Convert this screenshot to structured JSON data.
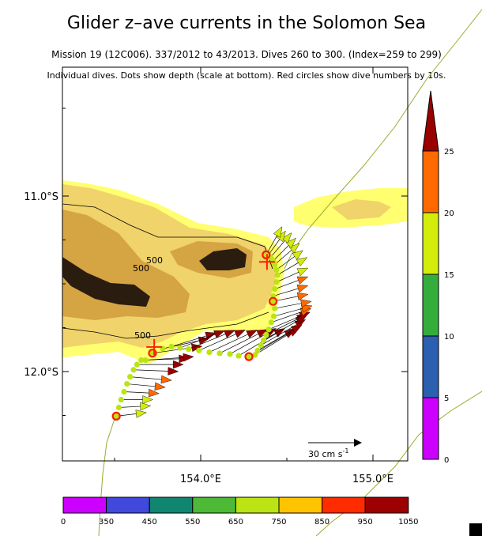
{
  "chart_data": {
    "type": "scatter",
    "title": "Glider z–ave currents in the Solomon Sea",
    "subtitle": "Mission 19 (12C006). 337/2012 to 43/2013. Dives 260 to 300. (Index=259 to 299)",
    "caption": "Individual dives. Dots show depth (scale at bottom). Red circles show dive numbers by 10s.",
    "x_ticks": [
      {
        "value": 154.0,
        "label": "154.0°E"
      },
      {
        "value": 155.0,
        "label": "155.0°E"
      }
    ],
    "y_ticks": [
      {
        "value": -11.0,
        "label": "11.0°S"
      },
      {
        "value": -12.0,
        "label": "12.0°S"
      }
    ],
    "xlim": [
      153.2,
      155.2
    ],
    "ylim": [
      -12.5,
      -10.25
    ],
    "contour_label": "500",
    "scale_arrow": {
      "value": 30,
      "label": "30 cm s",
      "sup": "-1"
    },
    "speed_colorbar": {
      "ticks": [
        "0",
        "5",
        "10",
        "15",
        "20",
        "25"
      ],
      "colors": [
        "#cc00ff",
        "#2b5fb0",
        "#35ad3d",
        "#d4ec0c",
        "#ff6a00",
        "#990000"
      ]
    },
    "depth_colorbar": {
      "ticks": [
        "0",
        "350",
        "450",
        "550",
        "650",
        "750",
        "850",
        "950",
        "1050"
      ],
      "colors": [
        "#cc00ff",
        "#4149dc",
        "#108670",
        "#4db936",
        "#bce414",
        "#ffc400",
        "#ff2c00",
        "#9c0000"
      ]
    },
    "track_color": "#bce414",
    "dives": [
      [
        153.51,
        -12.254,
        17,
        2
      ],
      [
        153.525,
        -12.205,
        18,
        1
      ],
      [
        153.538,
        -12.16,
        18,
        0
      ],
      [
        153.555,
        -12.115,
        20,
        -1
      ],
      [
        153.572,
        -12.07,
        22,
        -2
      ],
      [
        153.59,
        -12.03,
        24,
        -2
      ],
      [
        153.61,
        -11.99,
        26,
        -1
      ],
      [
        153.63,
        -11.96,
        27,
        0
      ],
      [
        153.655,
        -11.935,
        28,
        1
      ],
      [
        153.68,
        -11.935,
        28,
        2
      ],
      [
        153.72,
        -11.895,
        29,
        4
      ],
      [
        153.78,
        -11.87,
        27,
        6
      ],
      [
        153.83,
        -11.858,
        26,
        8
      ],
      [
        153.88,
        -11.865,
        26,
        10
      ],
      [
        153.93,
        -11.872,
        27,
        11
      ],
      [
        153.99,
        -11.88,
        27,
        12
      ],
      [
        154.05,
        -11.89,
        28,
        13
      ],
      [
        154.11,
        -11.896,
        28,
        14
      ],
      [
        154.17,
        -11.9,
        27,
        15
      ],
      [
        154.22,
        -11.91,
        27,
        16
      ],
      [
        154.28,
        -11.915,
        27,
        16
      ],
      [
        154.315,
        -11.905,
        26,
        16
      ],
      [
        154.33,
        -11.88,
        26,
        15
      ],
      [
        154.35,
        -11.85,
        26,
        15
      ],
      [
        154.365,
        -11.82,
        25,
        14
      ],
      [
        154.38,
        -11.79,
        24,
        12
      ],
      [
        154.395,
        -11.76,
        24,
        10
      ],
      [
        154.41,
        -11.72,
        23,
        8
      ],
      [
        154.425,
        -11.685,
        22,
        6
      ],
      [
        154.43,
        -11.64,
        21,
        4
      ],
      [
        154.42,
        -11.6,
        20,
        4
      ],
      [
        154.42,
        -11.57,
        20,
        6
      ],
      [
        154.43,
        -11.53,
        19,
        7
      ],
      [
        154.44,
        -11.49,
        18,
        8
      ],
      [
        154.445,
        -11.45,
        17,
        10
      ],
      [
        154.44,
        -11.42,
        15,
        11
      ],
      [
        154.43,
        -11.39,
        14,
        12
      ],
      [
        154.42,
        -11.37,
        13,
        13
      ],
      [
        154.405,
        -11.35,
        12,
        14
      ],
      [
        154.39,
        -11.34,
        10,
        14
      ],
      [
        154.38,
        -11.335,
        9,
        16
      ]
    ],
    "dive_depths": "all 650-750",
    "tens_markers": [
      0,
      10,
      20,
      30,
      40
    ],
    "start_end_markers": [
      [
        153.73,
        -11.86
      ],
      [
        154.385,
        -11.375
      ]
    ]
  }
}
